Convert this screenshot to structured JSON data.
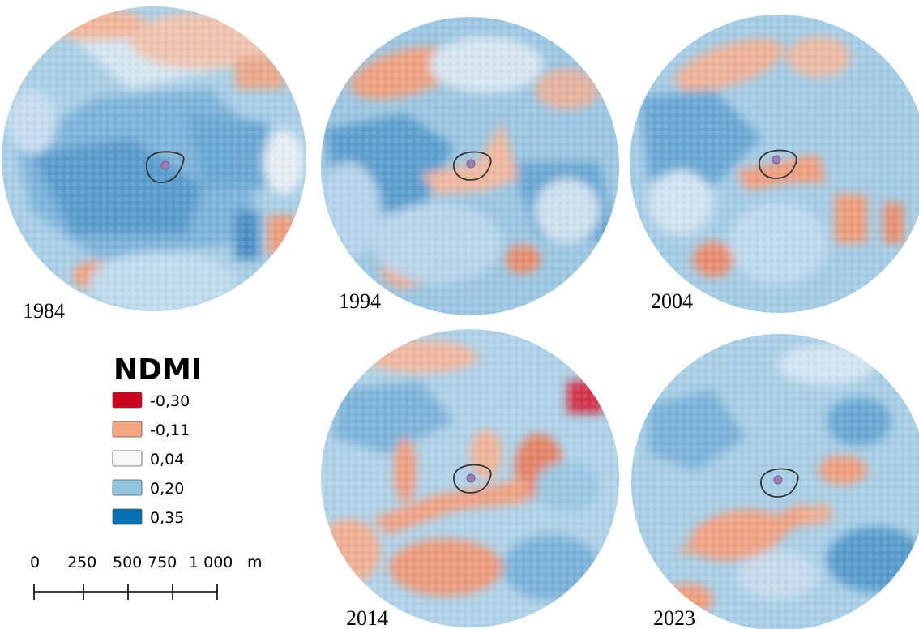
{
  "maps": [
    {
      "year": "1984"
    },
    {
      "year": "1994"
    },
    {
      "year": "2004"
    },
    {
      "year": "2014"
    },
    {
      "year": "2023"
    }
  ],
  "legend": {
    "title": "NDMI",
    "classes": [
      {
        "label": "-0,30",
        "color": "#ca0020"
      },
      {
        "label": "-0,11",
        "color": "#f4a582"
      },
      {
        "label": "0,04",
        "color": "#f7f7f7"
      },
      {
        "label": "0,20",
        "color": "#92c5de"
      },
      {
        "label": "0,35",
        "color": "#0571b0"
      }
    ]
  },
  "scale_bar": {
    "ticks": [
      "0",
      "250",
      "500",
      "750",
      "1 000"
    ],
    "unit": "m"
  },
  "palette": {
    "red": "#ca0020",
    "salmon": "#f4a582",
    "white": "#f7f7f7",
    "light_blue": "#92c5de",
    "blue": "#0571b0",
    "study_point": "#9b7fb0"
  }
}
